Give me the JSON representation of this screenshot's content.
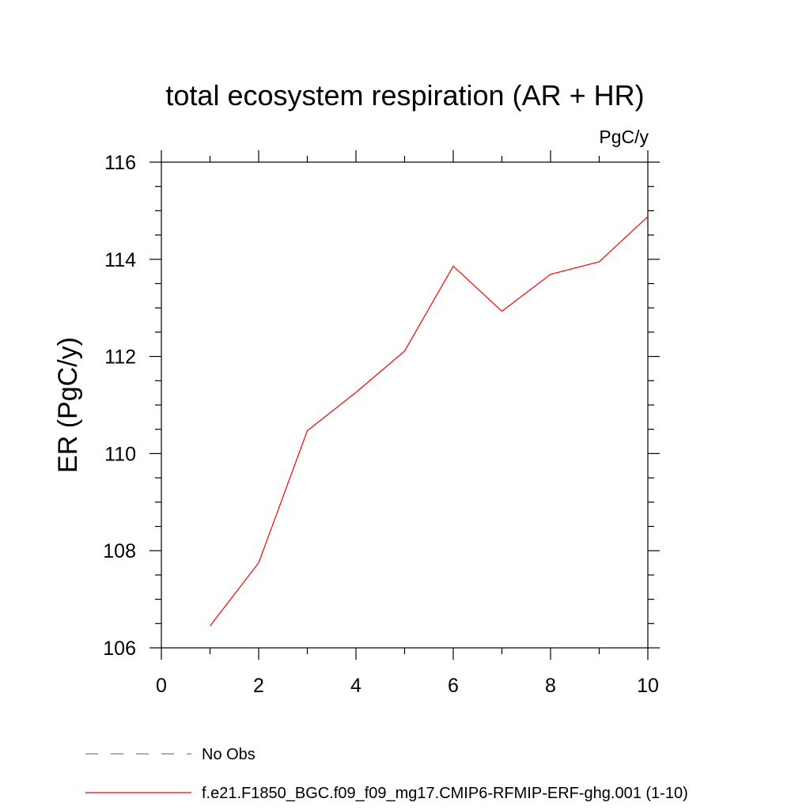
{
  "chart_data": {
    "type": "line",
    "title": "total ecosystem respiration (AR + HR)",
    "units_label": "PgC/y",
    "xlabel": "",
    "ylabel": "ER  (PgC/y)",
    "xlim": [
      0,
      10
    ],
    "ylim": [
      106,
      116
    ],
    "x_ticks": [
      0,
      2,
      4,
      6,
      8,
      10
    ],
    "y_ticks": [
      106,
      108,
      110,
      112,
      114,
      116
    ],
    "grid": false,
    "legend_position": "bottom",
    "colors": {
      "model": "#ff0000",
      "obs": "#7f6fbf",
      "axis": "#000000"
    },
    "series": [
      {
        "name": "f.e21.F1850_BGC.f09_f09_mg17.CMIP6-RFMIP-ERF-ghg.001 (1-10)",
        "x": [
          1,
          2,
          3,
          4,
          5,
          6,
          7,
          8,
          9,
          10
        ],
        "values": [
          106.45,
          107.75,
          110.47,
          111.26,
          112.11,
          113.86,
          112.93,
          113.69,
          113.95,
          114.88
        ]
      }
    ],
    "legend": [
      {
        "label": "No Obs",
        "style": "dashed",
        "color": "#7f6fbf"
      },
      {
        "label": "f.e21.F1850_BGC.f09_f09_mg17.CMIP6-RFMIP-ERF-ghg.001 (1-10)",
        "style": "solid",
        "color": "#ff0000"
      }
    ]
  }
}
